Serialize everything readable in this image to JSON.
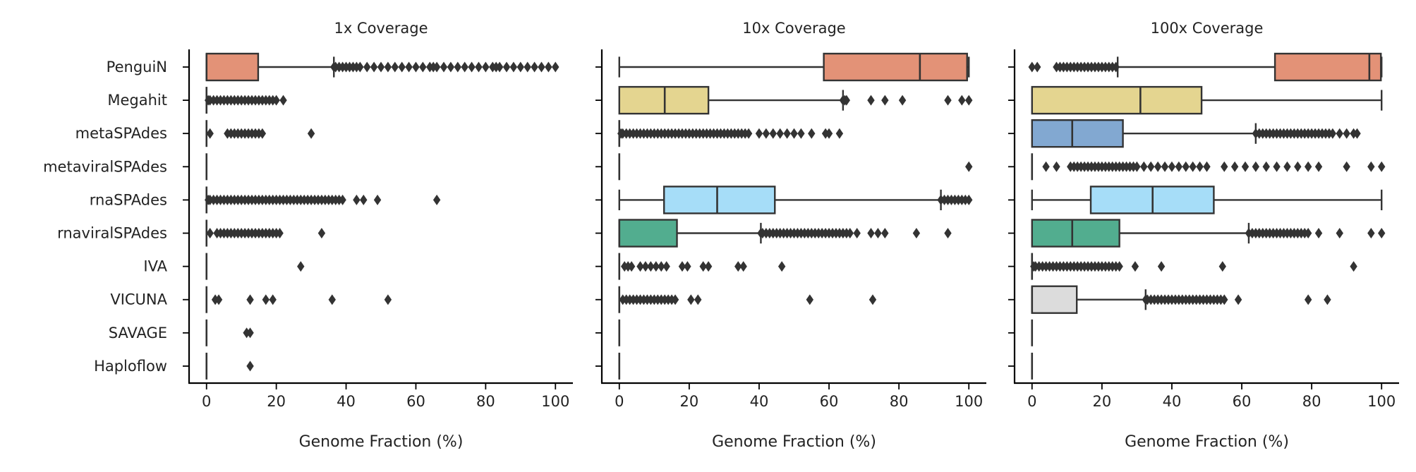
{
  "chart_data": [
    {
      "type": "box",
      "title": "1x Coverage",
      "xlabel": "Genome Fraction (%)",
      "xlim": [
        -5,
        105
      ],
      "xticks": [
        0,
        20,
        40,
        60,
        80,
        100
      ],
      "categories": [
        "PenguiN",
        "Megahit",
        "metaSPAdes",
        "metaviralSPAdes",
        "rnaSPAdes",
        "rnaviralSPAdes",
        "IVA",
        "VICUNA",
        "SAVAGE",
        "Haploflow"
      ],
      "boxes": [
        {
          "q1": 0,
          "median": 0,
          "q3": 14.8,
          "whisker_low": 0,
          "whisker_high": 36.5,
          "color": "#E39277",
          "outliers": [
            36.5,
            37,
            38,
            39,
            40,
            41,
            42,
            43,
            44,
            46,
            48,
            50,
            52,
            54,
            56,
            58,
            60,
            62,
            64,
            65,
            66,
            68,
            70,
            72,
            74,
            76,
            78,
            80,
            82,
            83,
            84,
            86,
            88,
            90,
            92,
            94,
            96,
            98,
            100
          ]
        },
        {
          "q1": 0,
          "median": 0,
          "q3": 0,
          "whisker_low": 0,
          "whisker_high": 0,
          "color": "#E4D590",
          "outliers": [
            0.5,
            1,
            2,
            3,
            4,
            5,
            6,
            7,
            8,
            9,
            10,
            11,
            12,
            13,
            14,
            15,
            16,
            17,
            18,
            19,
            20,
            22
          ]
        },
        {
          "q1": 0,
          "median": 0,
          "q3": 0,
          "whisker_low": 0,
          "whisker_high": 0,
          "color": "#82A8D1",
          "outliers": [
            1,
            6,
            7,
            8,
            9,
            10,
            11,
            12,
            13,
            14,
            15,
            16,
            30
          ]
        },
        {
          "q1": 0,
          "median": 0,
          "q3": 0,
          "whisker_low": 0,
          "whisker_high": 0,
          "color": "#C9A6D9",
          "outliers": []
        },
        {
          "q1": 0,
          "median": 0,
          "q3": 0,
          "whisker_low": 0,
          "whisker_high": 0,
          "color": "#A6DDF8",
          "outliers": [
            0.5,
            1,
            2,
            3,
            4,
            5,
            6,
            7,
            8,
            9,
            10,
            11,
            12,
            13,
            14,
            15,
            16,
            17,
            18,
            19,
            20,
            21,
            22,
            23,
            24,
            25,
            26,
            27,
            28,
            29,
            30,
            31,
            32,
            33,
            34,
            35,
            36,
            37,
            38,
            39,
            43,
            45,
            49,
            66
          ]
        },
        {
          "q1": 0,
          "median": 0,
          "q3": 0,
          "whisker_low": 0,
          "whisker_high": 0,
          "color": "#52AD8F",
          "outliers": [
            1,
            3,
            4,
            5,
            6,
            7,
            8,
            9,
            10,
            11,
            12,
            13,
            14,
            15,
            16,
            17,
            18,
            19,
            20,
            21,
            33
          ]
        },
        {
          "q1": 0,
          "median": 0,
          "q3": 0,
          "whisker_low": 0,
          "whisker_high": 0,
          "color": "#E39277",
          "outliers": [
            27
          ]
        },
        {
          "q1": 0,
          "median": 0,
          "q3": 0,
          "whisker_low": 0,
          "whisker_high": 0,
          "color": "#DCDCDC",
          "outliers": [
            2.5,
            3.5,
            12.5,
            17,
            19,
            36,
            52
          ]
        },
        {
          "q1": 0,
          "median": 0,
          "q3": 0,
          "whisker_low": 0,
          "whisker_high": 0,
          "color": "#E4D590",
          "outliers": [
            11.5,
            12.5
          ]
        },
        {
          "q1": 0,
          "median": 0,
          "q3": 0,
          "whisker_low": 0,
          "whisker_high": 0,
          "color": "#82A8D1",
          "outliers": [
            12.5
          ]
        }
      ]
    },
    {
      "type": "box",
      "title": "10x Coverage",
      "xlabel": "Genome Fraction (%)",
      "xlim": [
        -5,
        105
      ],
      "xticks": [
        0,
        20,
        40,
        60,
        80,
        100
      ],
      "categories": [
        "PenguiN",
        "Megahit",
        "metaSPAdes",
        "metaviralSPAdes",
        "rnaSPAdes",
        "rnaviralSPAdes",
        "IVA",
        "VICUNA",
        "SAVAGE",
        "Haploflow"
      ],
      "boxes": [
        {
          "q1": 58.5,
          "median": 86,
          "q3": 99.5,
          "whisker_low": 0,
          "whisker_high": 100,
          "color": "#E39277",
          "outliers": []
        },
        {
          "q1": 0,
          "median": 13,
          "q3": 25.5,
          "whisker_low": 0,
          "whisker_high": 64,
          "color": "#E4D590",
          "outliers": [
            64,
            64.5,
            65,
            72,
            76,
            81,
            94,
            98,
            100
          ]
        },
        {
          "q1": 0,
          "median": 0,
          "q3": 0,
          "whisker_low": 0,
          "whisker_high": 0,
          "color": "#82A8D1",
          "outliers": [
            0.5,
            1,
            2,
            3,
            4,
            5,
            6,
            7,
            8,
            9,
            10,
            11,
            12,
            13,
            14,
            15,
            16,
            17,
            18,
            19,
            20,
            21,
            22,
            23,
            24,
            25,
            26,
            27,
            28,
            29,
            30,
            31,
            32,
            33,
            34,
            35,
            36,
            37,
            40,
            42,
            44,
            46,
            48,
            50,
            52,
            55,
            59,
            60,
            63
          ]
        },
        {
          "q1": 0,
          "median": 0,
          "q3": 0,
          "whisker_low": 0,
          "whisker_high": 0,
          "color": "#C9A6D9",
          "outliers": [
            100
          ]
        },
        {
          "q1": 12.8,
          "median": 28,
          "q3": 44.5,
          "whisker_low": 0,
          "whisker_high": 92,
          "color": "#A6DDF8",
          "outliers": [
            92,
            93,
            94,
            95,
            96,
            97,
            98,
            99,
            100
          ]
        },
        {
          "q1": 0,
          "median": 0,
          "q3": 16.5,
          "whisker_low": 0,
          "whisker_high": 40.5,
          "color": "#52AD8F",
          "outliers": [
            40.5,
            41,
            42,
            43,
            44,
            45,
            46,
            47,
            48,
            49,
            50,
            51,
            52,
            53,
            54,
            55,
            56,
            57,
            58,
            59,
            60,
            61,
            62,
            63,
            64,
            65,
            66,
            68,
            72,
            74,
            76,
            85,
            94
          ]
        },
        {
          "q1": 0,
          "median": 0,
          "q3": 0,
          "whisker_low": 0,
          "whisker_high": 0,
          "color": "#E39277",
          "outliers": [
            1.5,
            2.5,
            3.5,
            6,
            7.5,
            9,
            10.5,
            12,
            13.5,
            18,
            19.5,
            24,
            25.5,
            34,
            35.5,
            46.5
          ]
        },
        {
          "q1": 0,
          "median": 0,
          "q3": 0,
          "whisker_low": 0,
          "whisker_high": 0,
          "color": "#DCDCDC",
          "outliers": [
            1,
            2,
            3,
            4,
            5,
            6,
            7,
            8,
            9,
            10,
            11,
            12,
            13,
            14,
            15,
            16,
            20.5,
            22.5,
            54.5,
            72.5
          ]
        },
        {
          "q1": 0,
          "median": 0,
          "q3": 0,
          "whisker_low": 0,
          "whisker_high": 0,
          "color": "#E4D590",
          "outliers": []
        },
        {
          "q1": 0,
          "median": 0,
          "q3": 0,
          "whisker_low": 0,
          "whisker_high": 0,
          "color": "#82A8D1",
          "outliers": []
        }
      ]
    },
    {
      "type": "box",
      "title": "100x Coverage",
      "xlabel": "Genome Fraction (%)",
      "xlim": [
        -5,
        105
      ],
      "xticks": [
        0,
        20,
        40,
        60,
        80,
        100
      ],
      "categories": [
        "PenguiN",
        "Megahit",
        "metaSPAdes",
        "metaviralSPAdes",
        "rnaSPAdes",
        "rnaviralSPAdes",
        "IVA",
        "VICUNA",
        "SAVAGE",
        "Haploflow"
      ],
      "boxes": [
        {
          "q1": 69.5,
          "median": 96.5,
          "q3": 99.8,
          "whisker_low": 24.5,
          "whisker_high": 100,
          "color": "#E39277",
          "outliers": [
            0,
            1.5,
            7,
            8,
            9,
            10,
            11,
            12,
            13,
            14,
            15,
            16,
            17,
            18,
            19,
            20,
            21,
            22,
            23,
            24
          ]
        },
        {
          "q1": 0,
          "median": 31,
          "q3": 48.5,
          "whisker_low": 0,
          "whisker_high": 100,
          "color": "#E4D590",
          "outliers": []
        },
        {
          "q1": 0,
          "median": 11.5,
          "q3": 26,
          "whisker_low": 0,
          "whisker_high": 64,
          "color": "#82A8D1",
          "outliers": [
            64,
            65,
            66,
            67,
            68,
            69,
            70,
            71,
            72,
            73,
            74,
            75,
            76,
            77,
            78,
            79,
            80,
            81,
            82,
            83,
            84,
            85,
            86,
            88,
            90,
            92,
            93
          ]
        },
        {
          "q1": 0,
          "median": 0,
          "q3": 0,
          "whisker_low": 0,
          "whisker_high": 0,
          "color": "#C9A6D9",
          "outliers": [
            4,
            7,
            11,
            12,
            13,
            14,
            15,
            16,
            17,
            18,
            19,
            20,
            21,
            22,
            23,
            24,
            25,
            26,
            27,
            28,
            29,
            30,
            32,
            34,
            36,
            38,
            40,
            42,
            44,
            46,
            48,
            50,
            55,
            58,
            61,
            64,
            67,
            70,
            73,
            76,
            79,
            82,
            90,
            97,
            100
          ]
        },
        {
          "q1": 16.8,
          "median": 34.5,
          "q3": 52,
          "whisker_low": 0,
          "whisker_high": 100,
          "color": "#A6DDF8",
          "outliers": []
        },
        {
          "q1": 0,
          "median": 11.5,
          "q3": 25,
          "whisker_low": 0,
          "whisker_high": 62,
          "color": "#52AD8F",
          "outliers": [
            62,
            63,
            64,
            65,
            66,
            67,
            68,
            69,
            70,
            71,
            72,
            73,
            74,
            75,
            76,
            77,
            78,
            79,
            82,
            88,
            97,
            100
          ]
        },
        {
          "q1": 0,
          "median": 0,
          "q3": 0,
          "whisker_low": 0,
          "whisker_high": 0,
          "color": "#E39277",
          "outliers": [
            0.5,
            1,
            2,
            3,
            4,
            5,
            6,
            7,
            8,
            9,
            10,
            11,
            12,
            13,
            14,
            15,
            16,
            17,
            18,
            19,
            20,
            21,
            22,
            23,
            24,
            25,
            29.5,
            37,
            54.5,
            92
          ]
        },
        {
          "q1": 0,
          "median": 0,
          "q3": 12.8,
          "whisker_low": 0,
          "whisker_high": 32.5,
          "color": "#DCDCDC",
          "outliers": [
            32.5,
            33,
            34,
            35,
            36,
            37,
            38,
            39,
            40,
            41,
            42,
            43,
            44,
            45,
            46,
            47,
            48,
            49,
            50,
            51,
            52,
            53,
            54,
            55,
            59,
            79,
            84.5
          ]
        },
        {
          "q1": 0,
          "median": 0,
          "q3": 0,
          "whisker_low": 0,
          "whisker_high": 0,
          "color": "#E4D590",
          "outliers": []
        },
        {
          "q1": 0,
          "median": 0,
          "q3": 0,
          "whisker_low": 0,
          "whisker_high": 0,
          "color": "#82A8D1",
          "outliers": []
        }
      ]
    }
  ]
}
